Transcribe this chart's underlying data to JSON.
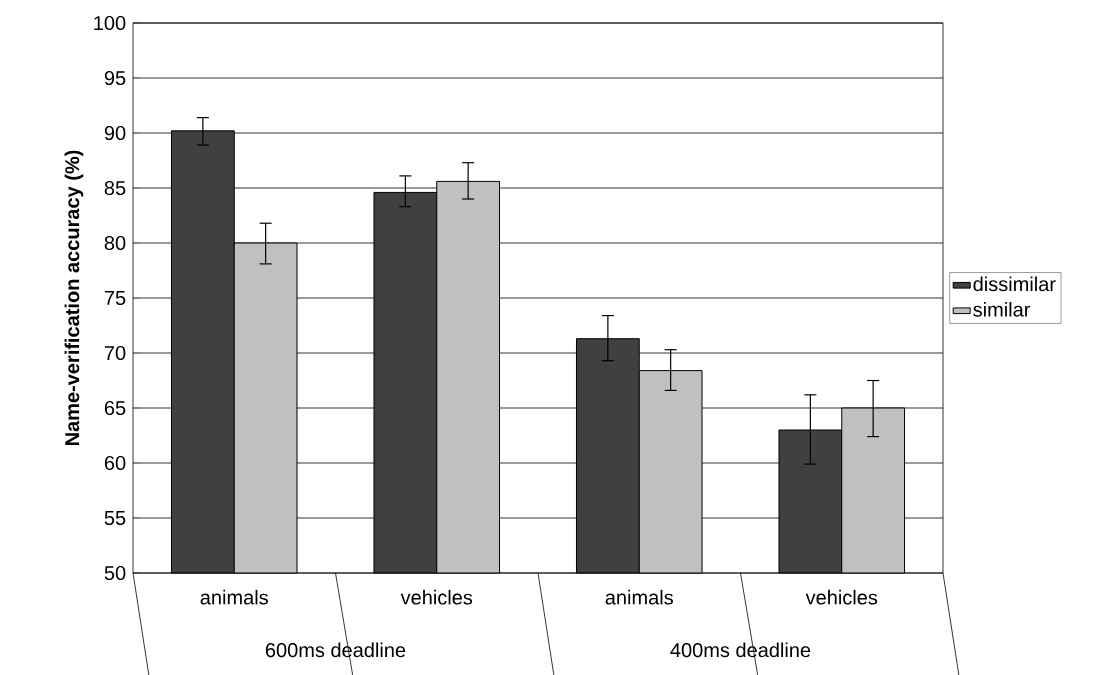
{
  "chart_data": {
    "type": "bar",
    "ylabel": "Name-verification accuracy (%)",
    "categories": [
      "animals",
      "vehicles",
      "animals",
      "vehicles"
    ],
    "annotations": [
      "600ms deadline",
      "400ms deadline"
    ],
    "series": [
      {
        "name": "dissimilar",
        "color": "#404040",
        "values": [
          90.2,
          84.6,
          71.3,
          63.0
        ],
        "errors": [
          [
            88.9,
            91.4
          ],
          [
            83.3,
            86.1
          ],
          [
            69.3,
            73.4
          ],
          [
            59.9,
            66.2
          ]
        ]
      },
      {
        "name": "similar",
        "color": "#c0c0c0",
        "values": [
          80.0,
          85.6,
          68.4,
          65.0
        ],
        "errors": [
          [
            78.1,
            81.8
          ],
          [
            84.0,
            87.3
          ],
          [
            66.6,
            70.3
          ],
          [
            62.4,
            67.5
          ]
        ]
      }
    ],
    "ylim": [
      50,
      100
    ],
    "yticks": [
      50,
      55,
      60,
      65,
      70,
      75,
      80,
      85,
      90,
      95,
      100
    ],
    "grid": "y",
    "legend": "right"
  }
}
